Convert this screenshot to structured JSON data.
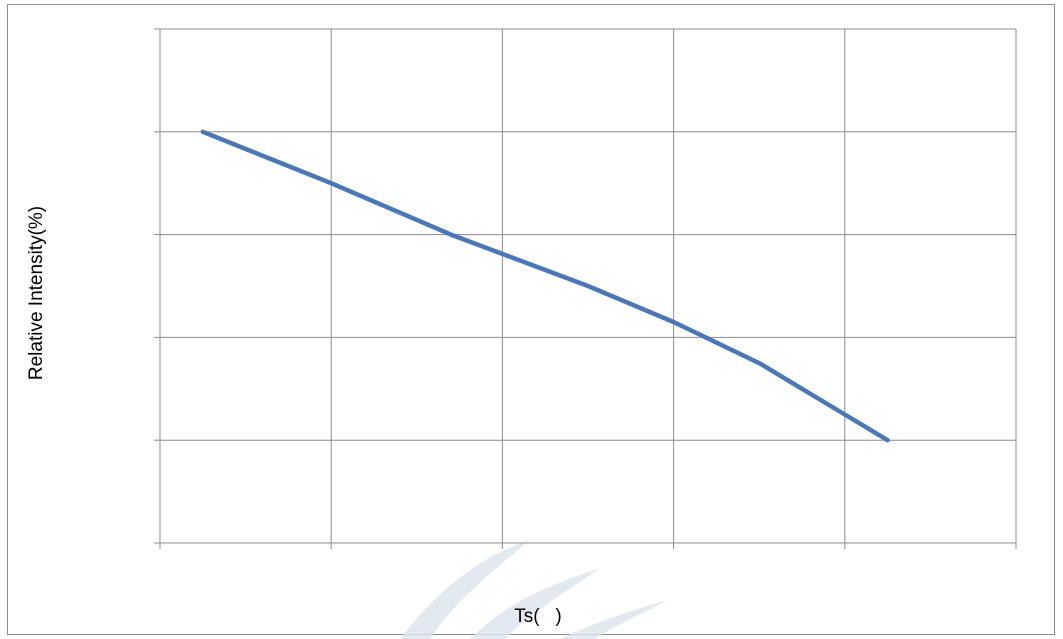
{
  "chart_data": {
    "type": "line",
    "xlabel": "Ts(   )",
    "ylabel": "Relative Intensity(%)",
    "x_divisions": 5,
    "y_divisions": 5,
    "grid": true,
    "series": [
      {
        "color": "#4a77b8",
        "points": [
          [
            0.25,
            4.0
          ],
          [
            1.0,
            3.5
          ],
          [
            1.7,
            3.0
          ],
          [
            2.5,
            2.5
          ],
          [
            3.0,
            2.15
          ],
          [
            3.5,
            1.75
          ],
          [
            4.0,
            1.25
          ],
          [
            4.25,
            1.0
          ]
        ]
      }
    ]
  },
  "watermark": {
    "color": "#dde4ec"
  }
}
